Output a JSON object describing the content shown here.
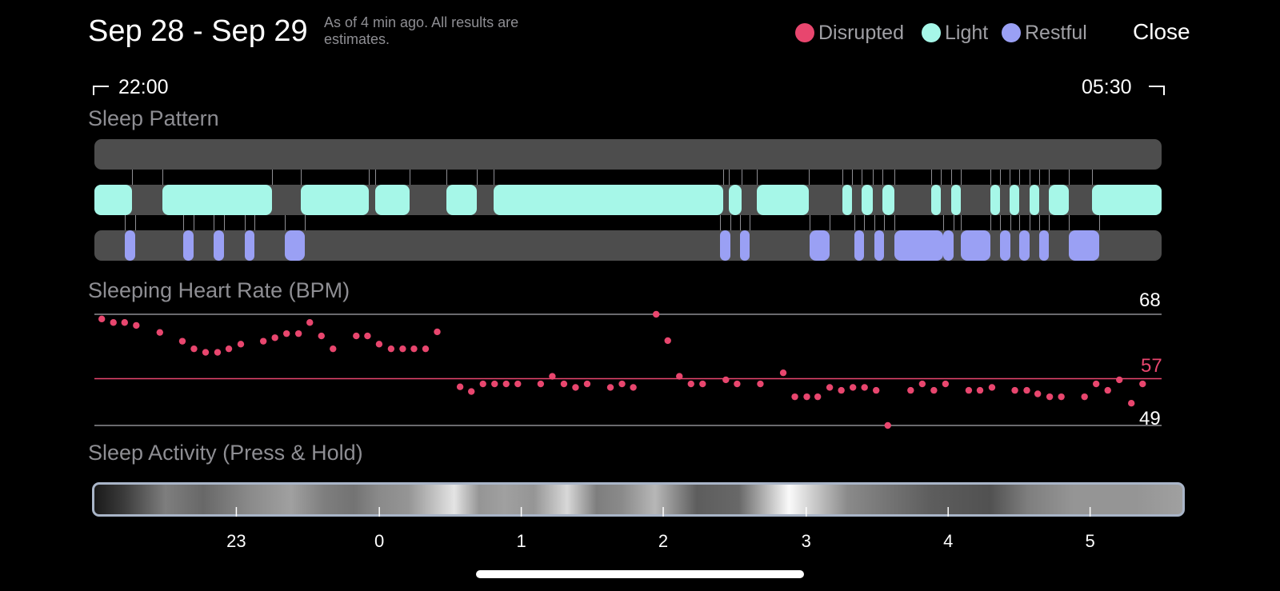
{
  "header": {
    "title": "Sep 28 - Sep 29",
    "subtitle": "As of 4 min ago. All results are estimates.",
    "close_label": "Close",
    "legend": [
      {
        "label": "Disrupted",
        "color": "#e8466e"
      },
      {
        "label": "Light",
        "color": "#a6f7e8"
      },
      {
        "label": "Restful",
        "color": "#9aa0f4"
      }
    ]
  },
  "timeline": {
    "start": "22:00",
    "end": "05:30"
  },
  "sleep_pattern": {
    "title": "Sleep Pattern",
    "colors": {
      "disrupted_track": "#4d4d4d",
      "light": "#a6f7e8",
      "restful": "#9aa0f4",
      "connector": "#8e8e93"
    },
    "light_segments": [
      [
        0,
        1.22
      ],
      [
        2.22,
        5.78
      ],
      [
        6.72,
        8.93
      ],
      [
        9.13,
        10.25
      ],
      [
        11.45,
        12.44
      ],
      [
        12.99,
        20.45
      ],
      [
        20.62,
        21.04
      ],
      [
        21.55,
        23.23
      ],
      [
        24.32,
        24.63
      ],
      [
        24.95,
        25.32
      ],
      [
        25.62,
        26.02
      ],
      [
        27.22,
        27.53
      ],
      [
        27.86,
        28.18
      ],
      [
        29.13,
        29.45
      ],
      [
        29.77,
        30.08
      ],
      [
        30.4,
        30.72
      ],
      [
        31.04,
        31.68
      ],
      [
        32.44,
        34.7
      ]
    ],
    "restful_segments": [
      [
        0.98,
        1.33
      ],
      [
        2.9,
        3.22
      ],
      [
        3.88,
        4.21
      ],
      [
        4.88,
        5.2
      ],
      [
        6.2,
        6.83
      ],
      [
        20.35,
        20.67
      ],
      [
        20.99,
        21.3
      ],
      [
        23.25,
        23.9
      ],
      [
        24.7,
        25.02
      ],
      [
        25.35,
        25.67
      ],
      [
        26.0,
        27.61
      ],
      [
        27.61,
        27.94
      ],
      [
        28.17,
        29.14
      ],
      [
        29.45,
        29.78
      ],
      [
        30.08,
        30.4
      ],
      [
        30.72,
        31.04
      ],
      [
        31.69,
        32.66
      ]
    ]
  },
  "heart_rate": {
    "title": "Sleeping Heart Rate (BPM)",
    "max_label": "68",
    "avg_label": "57",
    "min_label": "49",
    "min": 49,
    "avg": 57,
    "max": 68,
    "color": "#e8466e",
    "points": [
      [
        0.05,
        67.2
      ],
      [
        0.38,
        66.6
      ],
      [
        0.7,
        66.6
      ],
      [
        1.03,
        66.1
      ],
      [
        1.7,
        64.9
      ],
      [
        2.34,
        63.4
      ],
      [
        2.67,
        62.1
      ],
      [
        3.0,
        61.5
      ],
      [
        3.34,
        61.5
      ],
      [
        3.66,
        62.1
      ],
      [
        4.0,
        62.9
      ],
      [
        4.64,
        63.4
      ],
      [
        4.97,
        64.0
      ],
      [
        5.3,
        64.7
      ],
      [
        5.64,
        64.7
      ],
      [
        5.96,
        66.6
      ],
      [
        6.29,
        64.3
      ],
      [
        6.62,
        62.1
      ],
      [
        7.28,
        64.3
      ],
      [
        7.6,
        64.3
      ],
      [
        7.93,
        62.9
      ],
      [
        8.27,
        62.1
      ],
      [
        8.6,
        62.1
      ],
      [
        8.92,
        62.1
      ],
      [
        9.25,
        62.1
      ],
      [
        9.58,
        65.0
      ],
      [
        10.23,
        55.6
      ],
      [
        10.55,
        54.8
      ],
      [
        10.88,
        56.1
      ],
      [
        11.21,
        56.1
      ],
      [
        11.54,
        56.1
      ],
      [
        11.87,
        56.1
      ],
      [
        12.52,
        56.1
      ],
      [
        12.85,
        57.4
      ],
      [
        13.18,
        56.1
      ],
      [
        13.51,
        55.5
      ],
      [
        13.84,
        56.1
      ],
      [
        14.5,
        55.5
      ],
      [
        14.83,
        56.1
      ],
      [
        15.15,
        55.5
      ],
      [
        15.8,
        68.0
      ],
      [
        16.13,
        63.5
      ],
      [
        16.46,
        57.4
      ],
      [
        16.79,
        56.1
      ],
      [
        17.12,
        56.1
      ],
      [
        17.78,
        56.8
      ],
      [
        18.1,
        56.1
      ],
      [
        18.76,
        56.1
      ],
      [
        19.41,
        58.0
      ],
      [
        19.74,
        53.9
      ],
      [
        20.08,
        53.9
      ],
      [
        20.39,
        53.9
      ],
      [
        20.73,
        55.5
      ],
      [
        21.06,
        55.0
      ],
      [
        21.39,
        55.5
      ],
      [
        21.72,
        55.5
      ],
      [
        22.05,
        55.0
      ],
      [
        22.38,
        49.0
      ],
      [
        23.03,
        55.0
      ],
      [
        23.36,
        56.1
      ],
      [
        23.69,
        55.0
      ],
      [
        24.02,
        56.1
      ],
      [
        24.68,
        55.0
      ],
      [
        25.0,
        55.0
      ],
      [
        25.34,
        55.5
      ],
      [
        25.99,
        55.0
      ],
      [
        26.33,
        55.0
      ],
      [
        26.64,
        54.4
      ],
      [
        26.98,
        53.9
      ],
      [
        27.31,
        53.9
      ],
      [
        27.97,
        53.9
      ],
      [
        28.3,
        56.1
      ],
      [
        28.63,
        55.0
      ],
      [
        28.96,
        56.8
      ],
      [
        29.3,
        52.8
      ],
      [
        29.62,
        56.1
      ]
    ]
  },
  "sleep_activity": {
    "title": "Sleep Activity (Press & Hold)",
    "bands": [
      [
        0.035,
        0.15
      ],
      [
        0.085,
        0.45
      ],
      [
        0.13,
        0.35
      ],
      [
        0.185,
        0.5
      ],
      [
        0.235,
        0.6
      ],
      [
        0.275,
        0.45
      ],
      [
        0.31,
        0.4
      ],
      [
        0.34,
        0.5
      ],
      [
        0.375,
        0.55
      ],
      [
        0.43,
        0.9
      ],
      [
        0.46,
        0.55
      ],
      [
        0.49,
        0.6
      ],
      [
        0.525,
        0.55
      ],
      [
        0.565,
        0.85
      ],
      [
        0.6,
        0.45
      ],
      [
        0.63,
        0.5
      ],
      [
        0.67,
        0.7
      ],
      [
        0.72,
        0.3
      ],
      [
        0.77,
        0.35
      ],
      [
        0.83,
        1.0
      ],
      [
        0.9,
        0.5
      ],
      [
        1.0,
        0.3
      ],
      [
        1.07,
        0.25
      ],
      [
        1.115,
        0.45
      ],
      [
        1.17,
        0.55
      ],
      [
        1.21,
        0.55
      ],
      [
        1.245,
        0.55
      ],
      [
        1.3,
        0.6
      ]
    ]
  },
  "x_axis": {
    "ticks": [
      {
        "label": "23",
        "pos": 0.133
      },
      {
        "label": "0",
        "pos": 0.267
      },
      {
        "label": "1",
        "pos": 0.4
      },
      {
        "label": "2",
        "pos": 0.533
      },
      {
        "label": "3",
        "pos": 0.667
      },
      {
        "label": "4",
        "pos": 0.8
      },
      {
        "label": "5",
        "pos": 0.933
      }
    ]
  }
}
